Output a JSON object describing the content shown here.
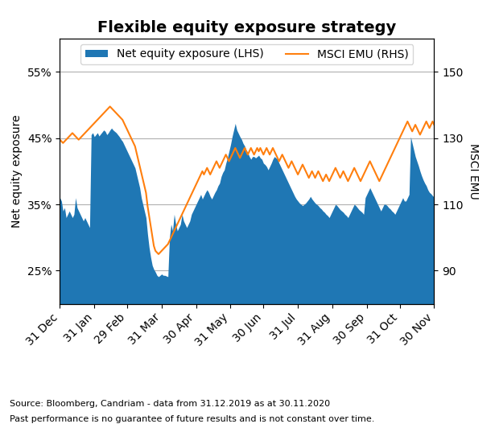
{
  "chart_data": {
    "type": "area",
    "title": "Flexible equity exposure strategy",
    "y_label": "Net equity exposure",
    "y2_label": "MSCI EMU",
    "annotations": [
      "Source: Bloomberg, Candriam - data from 31.12.2019 as at 30.11.2020",
      "Past performance is no guarantee of future results and is not constant over time."
    ],
    "categories": [
      "31 Dec",
      null,
      null,
      null,
      null,
      null,
      null,
      null,
      null,
      null,
      null,
      null,
      null,
      null,
      null,
      null,
      null,
      null,
      null,
      null,
      null,
      null,
      "31 Jan",
      null,
      null,
      null,
      null,
      null,
      null,
      null,
      null,
      null,
      null,
      null,
      null,
      null,
      null,
      null,
      null,
      null,
      null,
      null,
      null,
      "29 Feb",
      null,
      null,
      null,
      null,
      null,
      null,
      null,
      null,
      null,
      null,
      null,
      null,
      null,
      null,
      null,
      null,
      null,
      null,
      null,
      null,
      null,
      "31 Mar",
      null,
      null,
      null,
      null,
      null,
      null,
      null,
      null,
      null,
      null,
      null,
      null,
      null,
      null,
      null,
      null,
      null,
      null,
      null,
      null,
      null,
      "30 Apr",
      null,
      null,
      null,
      null,
      null,
      null,
      null,
      null,
      null,
      null,
      null,
      null,
      null,
      null,
      null,
      null,
      null,
      null,
      null,
      null,
      null,
      "31 May",
      null,
      null,
      null,
      null,
      null,
      null,
      null,
      null,
      null,
      null,
      null,
      null,
      null,
      null,
      null,
      null,
      null,
      null,
      null,
      null,
      "30 Jun",
      null,
      null,
      null,
      null,
      null,
      null,
      null,
      null,
      null,
      null,
      null,
      null,
      null,
      null,
      null,
      null,
      null,
      null,
      null,
      null,
      null,
      "31 Jul",
      null,
      null,
      null,
      null,
      null,
      null,
      null,
      null,
      null,
      null,
      null,
      null,
      null,
      null,
      null,
      null,
      null,
      null,
      null,
      null,
      null,
      "31 Aug",
      null,
      null,
      null,
      null,
      null,
      null,
      null,
      null,
      null,
      null,
      null,
      null,
      null,
      null,
      null,
      null,
      null,
      null,
      null,
      null,
      null,
      "30 Sep",
      null,
      null,
      null,
      null,
      null,
      null,
      null,
      null,
      null,
      null,
      null,
      null,
      null,
      null,
      null,
      null,
      null,
      null,
      null,
      null,
      "31 Oct",
      null,
      null,
      null,
      null,
      null,
      null,
      null,
      null,
      null,
      null,
      null,
      null,
      null,
      null,
      null,
      null,
      null,
      null,
      null,
      null,
      null,
      "30 Nov"
    ],
    "series": [
      {
        "name": "Net equity exposure (LHS)",
        "type": "area",
        "values": [
          0.36,
          0.355,
          0.34,
          0.345,
          0.33,
          0.335,
          0.34,
          0.335,
          0.33,
          0.335,
          0.36,
          0.345,
          0.34,
          0.335,
          0.33,
          0.325,
          0.33,
          0.325,
          0.32,
          0.315,
          0.455,
          0.458,
          0.452,
          0.455,
          0.458,
          0.453,
          0.456,
          0.459,
          0.462,
          0.46,
          0.455,
          0.458,
          0.462,
          0.465,
          0.462,
          0.46,
          0.458,
          0.455,
          0.452,
          0.448,
          0.445,
          0.44,
          0.435,
          0.43,
          0.425,
          0.42,
          0.415,
          0.41,
          0.405,
          0.395,
          0.385,
          0.375,
          0.36,
          0.35,
          0.34,
          0.33,
          0.305,
          0.285,
          0.27,
          0.258,
          0.252,
          0.248,
          0.243,
          0.241,
          0.243,
          0.245,
          0.243,
          0.243,
          0.242,
          0.241,
          0.3,
          0.32,
          0.31,
          0.335,
          0.32,
          0.31,
          0.315,
          0.32,
          0.335,
          0.325,
          0.32,
          0.315,
          0.32,
          0.325,
          0.335,
          0.34,
          0.345,
          0.35,
          0.355,
          0.36,
          0.365,
          0.358,
          0.363,
          0.368,
          0.372,
          0.368,
          0.362,
          0.358,
          0.363,
          0.368,
          0.372,
          0.378,
          0.382,
          0.392,
          0.398,
          0.402,
          0.412,
          0.42,
          0.43,
          0.44,
          0.452,
          0.462,
          0.472,
          0.462,
          0.457,
          0.452,
          0.448,
          0.442,
          0.438,
          0.432,
          0.428,
          0.422,
          0.418,
          0.422,
          0.422,
          0.42,
          0.422,
          0.424,
          0.42,
          0.418,
          0.412,
          0.41,
          0.407,
          0.402,
          0.407,
          0.412,
          0.418,
          0.422,
          0.42,
          0.418,
          0.412,
          0.407,
          0.402,
          0.397,
          0.392,
          0.387,
          0.382,
          0.377,
          0.372,
          0.367,
          0.362,
          0.358,
          0.355,
          0.352,
          0.35,
          0.348,
          0.35,
          0.352,
          0.355,
          0.358,
          0.362,
          0.358,
          0.355,
          0.352,
          0.35,
          0.348,
          0.345,
          0.343,
          0.34,
          0.338,
          0.335,
          0.333,
          0.33,
          0.335,
          0.34,
          0.345,
          0.35,
          0.348,
          0.345,
          0.342,
          0.34,
          0.338,
          0.335,
          0.333,
          0.33,
          0.335,
          0.34,
          0.345,
          0.35,
          0.348,
          0.345,
          0.342,
          0.34,
          0.338,
          0.335,
          0.36,
          0.365,
          0.37,
          0.375,
          0.37,
          0.365,
          0.36,
          0.355,
          0.35,
          0.345,
          0.34,
          0.345,
          0.35,
          0.35,
          0.348,
          0.345,
          0.343,
          0.34,
          0.338,
          0.335,
          0.34,
          0.345,
          0.35,
          0.355,
          0.36,
          0.355,
          0.355,
          0.36,
          0.365,
          0.452,
          0.442,
          0.432,
          0.422,
          0.415,
          0.408,
          0.4,
          0.393,
          0.387,
          0.382,
          0.378,
          0.372,
          0.368,
          0.366,
          0.363,
          0.361
        ]
      },
      {
        "name": "MSCI EMU (RHS)",
        "type": "line",
        "axis": "y2",
        "values": [
          129.5,
          129.0,
          128.5,
          129.0,
          129.5,
          130.0,
          130.5,
          131.0,
          131.5,
          131.0,
          130.5,
          130.0,
          129.5,
          130.0,
          130.5,
          131.0,
          131.5,
          132.0,
          132.5,
          133.0,
          133.5,
          134.0,
          134.5,
          135.0,
          135.5,
          136.0,
          136.5,
          137.0,
          137.5,
          138.0,
          138.5,
          139.0,
          139.5,
          139.0,
          138.5,
          138.0,
          137.5,
          137.0,
          136.5,
          136.0,
          135.5,
          134.5,
          133.5,
          132.5,
          131.5,
          130.5,
          129.5,
          128.5,
          127.5,
          125.5,
          123.5,
          121.5,
          119.5,
          117.5,
          115.5,
          113.5,
          109.5,
          106.5,
          103.5,
          100.5,
          97.5,
          96.0,
          95.5,
          95.0,
          95.5,
          96.0,
          96.5,
          97.0,
          97.5,
          98.0,
          99.0,
          100.0,
          101.0,
          102.0,
          103.0,
          104.0,
          105.0,
          106.0,
          107.0,
          108.0,
          109.0,
          110.0,
          111.0,
          112.0,
          113.0,
          114.0,
          115.0,
          116.0,
          117.0,
          118.0,
          119.0,
          120.0,
          119.0,
          120.0,
          121.0,
          120.0,
          119.0,
          120.0,
          121.0,
          122.0,
          123.0,
          122.0,
          121.0,
          122.0,
          123.0,
          124.0,
          125.0,
          124.0,
          123.0,
          124.0,
          125.0,
          126.0,
          127.0,
          126.0,
          125.0,
          124.0,
          125.0,
          126.0,
          127.0,
          126.0,
          125.0,
          126.0,
          127.0,
          126.0,
          125.0,
          126.0,
          127.0,
          126.0,
          127.0,
          126.0,
          125.0,
          126.0,
          127.0,
          126.0,
          125.0,
          126.0,
          127.0,
          126.0,
          125.0,
          124.0,
          123.0,
          124.0,
          125.0,
          124.0,
          123.0,
          122.0,
          121.0,
          122.0,
          123.0,
          122.0,
          121.0,
          120.0,
          119.0,
          120.0,
          121.0,
          122.0,
          121.0,
          120.0,
          119.0,
          118.0,
          119.0,
          120.0,
          119.0,
          118.0,
          119.0,
          120.0,
          119.0,
          118.0,
          117.0,
          118.0,
          119.0,
          118.0,
          117.0,
          118.0,
          119.0,
          120.0,
          121.0,
          120.0,
          119.0,
          118.0,
          119.0,
          120.0,
          119.0,
          118.0,
          117.0,
          118.0,
          119.0,
          120.0,
          121.0,
          120.0,
          119.0,
          118.0,
          117.0,
          118.0,
          119.0,
          120.0,
          121.0,
          122.0,
          123.0,
          122.0,
          121.0,
          120.0,
          119.0,
          118.0,
          117.0,
          118.0,
          119.0,
          120.0,
          121.0,
          122.0,
          123.0,
          124.0,
          125.0,
          126.0,
          127.0,
          128.0,
          129.0,
          130.0,
          131.0,
          132.0,
          133.0,
          134.0,
          135.0,
          134.0,
          133.0,
          132.0,
          133.0,
          134.0,
          133.0,
          132.0,
          131.0,
          132.0,
          133.0,
          134.0,
          135.0,
          134.0,
          133.0,
          134.0,
          135.0,
          134.0
        ]
      }
    ],
    "ylim": [
      0.2,
      0.6
    ],
    "yticks": [
      {
        "value": 0.25,
        "label": "25%"
      },
      {
        "value": 0.35,
        "label": "35%"
      },
      {
        "value": 0.45,
        "label": "45%"
      },
      {
        "value": 0.55,
        "label": "55%"
      }
    ],
    "y2lim": [
      80,
      160
    ],
    "y2ticks": [
      90,
      110,
      130,
      150
    ],
    "grid": true,
    "legend": "upper center"
  }
}
